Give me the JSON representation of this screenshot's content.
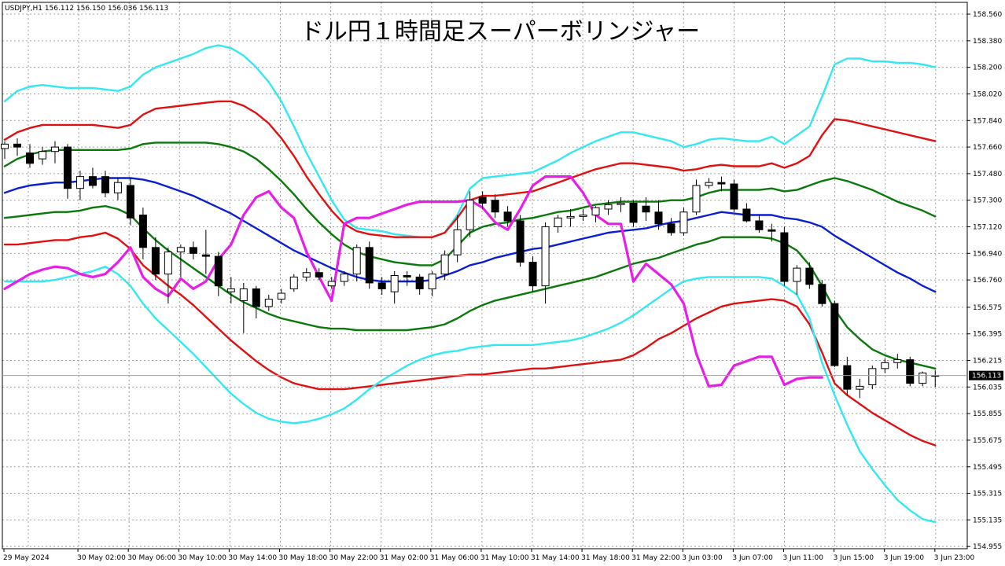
{
  "symbol_info": "USDJPY,H1  156.112 156.150 156.036 156.113",
  "chart_data": {
    "type": "line",
    "title": "ドル円１時間足スーパーボリンジャー",
    "current_price": 156.113,
    "current_price_label": "156.113",
    "ylim": [
      154.94,
      158.64
    ],
    "y_ticks": [
      "158.560",
      "158.380",
      "158.200",
      "158.020",
      "157.840",
      "157.660",
      "157.480",
      "157.300",
      "157.120",
      "156.940",
      "156.760",
      "156.575",
      "156.395",
      "156.215",
      "156.035",
      "155.855",
      "155.675",
      "155.495",
      "155.315",
      "155.135",
      "154.955"
    ],
    "x_labels": [
      "29 May 2024",
      "30 May 02:00",
      "30 May 06:00",
      "30 May 10:00",
      "30 May 14:00",
      "30 May 18:00",
      "30 May 22:00",
      "31 May 02:00",
      "31 May 06:00",
      "31 May 10:00",
      "31 May 14:00",
      "31 May 18:00",
      "31 May 22:00",
      "3 Jun 03:00",
      "3 Jun 07:00",
      "3 Jun 11:00",
      "3 Jun 15:00",
      "3 Jun 19:00",
      "3 Jun 23:00"
    ],
    "grid": true,
    "colors": {
      "outer_band": "#33e8f0",
      "mid_band": "#e01010",
      "inner_band": "#0a780a",
      "middle_line": "#0a1ed2",
      "lagging_span": "#e61ee6",
      "bull_candle": "#ffffff",
      "bear_candle": "#000000"
    },
    "candles": [
      [
        157.65,
        157.7,
        157.58,
        157.68
      ],
      [
        157.68,
        157.72,
        157.6,
        157.66
      ],
      [
        157.62,
        157.68,
        157.52,
        157.55
      ],
      [
        157.58,
        157.66,
        157.54,
        157.63
      ],
      [
        157.63,
        157.7,
        157.55,
        157.66
      ],
      [
        157.66,
        157.68,
        157.31,
        157.38
      ],
      [
        157.38,
        157.5,
        157.3,
        157.46
      ],
      [
        157.46,
        157.52,
        157.38,
        157.4
      ],
      [
        157.46,
        157.5,
        157.32,
        157.35
      ],
      [
        157.35,
        157.45,
        157.3,
        157.42
      ],
      [
        157.4,
        157.45,
        157.13,
        157.18
      ],
      [
        157.2,
        157.25,
        156.9,
        156.98
      ],
      [
        156.98,
        157.05,
        156.76,
        156.8
      ],
      [
        156.8,
        156.98,
        156.6,
        156.95
      ],
      [
        156.95,
        157.0,
        156.78,
        156.98
      ],
      [
        156.98,
        157.02,
        156.9,
        156.94
      ],
      [
        156.93,
        157.1,
        156.8,
        156.92
      ],
      [
        156.92,
        156.95,
        156.65,
        156.72
      ],
      [
        156.68,
        156.78,
        156.6,
        156.7
      ],
      [
        156.62,
        156.74,
        156.4,
        156.7
      ],
      [
        156.7,
        156.72,
        156.5,
        156.58
      ],
      [
        156.58,
        156.66,
        156.55,
        156.63
      ],
      [
        156.63,
        156.7,
        156.6,
        156.67
      ],
      [
        156.7,
        156.8,
        156.68,
        156.78
      ],
      [
        156.78,
        156.84,
        156.75,
        156.81
      ],
      [
        156.81,
        156.84,
        156.76,
        156.78
      ],
      [
        156.72,
        156.78,
        156.7,
        156.75
      ],
      [
        156.75,
        156.82,
        156.72,
        156.8
      ],
      [
        156.8,
        157.0,
        156.75,
        156.98
      ],
      [
        156.98,
        157.02,
        156.7,
        156.74
      ],
      [
        156.74,
        156.78,
        156.66,
        156.7
      ],
      [
        156.68,
        156.82,
        156.6,
        156.79
      ],
      [
        156.79,
        156.82,
        156.72,
        156.78
      ],
      [
        156.78,
        156.8,
        156.66,
        156.7
      ],
      [
        156.7,
        156.82,
        156.65,
        156.8
      ],
      [
        156.8,
        156.96,
        156.76,
        156.93
      ],
      [
        156.93,
        157.2,
        156.88,
        157.1
      ],
      [
        157.1,
        157.36,
        157.05,
        157.3
      ],
      [
        157.32,
        157.36,
        157.24,
        157.28
      ],
      [
        157.3,
        157.34,
        157.18,
        157.22
      ],
      [
        157.22,
        157.26,
        157.12,
        157.16
      ],
      [
        157.16,
        157.2,
        156.85,
        156.88
      ],
      [
        156.88,
        156.92,
        156.68,
        156.72
      ],
      [
        156.72,
        157.15,
        156.6,
        157.12
      ],
      [
        157.12,
        157.2,
        157.08,
        157.18
      ],
      [
        157.18,
        157.24,
        157.12,
        157.19
      ],
      [
        157.19,
        157.24,
        157.16,
        157.2
      ],
      [
        157.2,
        157.26,
        157.15,
        157.25
      ],
      [
        157.24,
        157.3,
        157.2,
        157.27
      ],
      [
        157.27,
        157.32,
        157.22,
        157.28
      ],
      [
        157.28,
        157.3,
        157.12,
        157.15
      ],
      [
        157.26,
        157.32,
        157.16,
        157.22
      ],
      [
        157.22,
        157.3,
        157.1,
        157.14
      ],
      [
        157.14,
        157.18,
        157.06,
        157.08
      ],
      [
        157.08,
        157.25,
        157.06,
        157.22
      ],
      [
        157.22,
        157.44,
        157.2,
        157.4
      ],
      [
        157.4,
        157.45,
        157.38,
        157.42
      ],
      [
        157.42,
        157.46,
        157.36,
        157.41
      ],
      [
        157.41,
        157.44,
        157.22,
        157.24
      ],
      [
        157.24,
        157.28,
        157.15,
        157.16
      ],
      [
        157.16,
        157.2,
        157.08,
        157.1
      ],
      [
        157.1,
        157.14,
        157.02,
        157.09
      ],
      [
        157.08,
        157.12,
        156.72,
        156.75
      ],
      [
        156.75,
        156.86,
        156.66,
        156.84
      ],
      [
        156.84,
        156.88,
        156.7,
        156.73
      ],
      [
        156.73,
        156.76,
        156.58,
        156.6
      ],
      [
        156.6,
        156.62,
        156.17,
        156.18
      ],
      [
        156.18,
        156.24,
        155.98,
        156.02
      ],
      [
        156.02,
        156.09,
        155.96,
        156.04
      ],
      [
        156.05,
        156.18,
        156.02,
        156.16
      ],
      [
        156.16,
        156.23,
        156.13,
        156.2
      ],
      [
        156.2,
        156.26,
        156.16,
        156.22
      ],
      [
        156.22,
        156.24,
        156.04,
        156.06
      ],
      [
        156.06,
        156.14,
        156.04,
        156.13
      ],
      [
        156.112,
        156.15,
        156.036,
        156.113
      ]
    ],
    "series": [
      {
        "key": "upper3",
        "values": [
          157.97,
          158.04,
          158.07,
          158.08,
          158.07,
          158.06,
          158.06,
          158.06,
          158.05,
          158.04,
          158.07,
          158.15,
          158.2,
          158.23,
          158.26,
          158.29,
          158.33,
          158.35,
          158.33,
          158.28,
          158.2,
          158.1,
          157.97,
          157.8,
          157.62,
          157.46,
          157.3,
          157.17,
          157.11,
          157.1,
          157.09,
          157.07,
          157.06,
          157.05,
          157.05,
          157.08,
          157.2,
          157.38,
          157.45,
          157.46,
          157.47,
          157.48,
          157.49,
          157.53,
          157.57,
          157.62,
          157.66,
          157.7,
          157.73,
          157.76,
          157.76,
          157.74,
          157.72,
          157.7,
          157.66,
          157.68,
          157.71,
          157.72,
          157.71,
          157.7,
          157.7,
          157.73,
          157.68,
          157.74,
          157.8,
          158.0,
          158.22,
          158.26,
          158.26,
          158.24,
          158.24,
          158.23,
          158.23,
          158.22,
          158.2
        ]
      },
      {
        "key": "upper2",
        "values": [
          157.71,
          157.76,
          157.79,
          157.81,
          157.81,
          157.81,
          157.81,
          157.81,
          157.8,
          157.79,
          157.81,
          157.88,
          157.92,
          157.93,
          157.94,
          157.95,
          157.96,
          157.97,
          157.97,
          157.94,
          157.89,
          157.82,
          157.72,
          157.6,
          157.46,
          157.34,
          157.23,
          157.14,
          157.09,
          157.07,
          157.06,
          157.05,
          157.05,
          157.05,
          157.05,
          157.08,
          157.18,
          157.3,
          157.33,
          157.33,
          157.34,
          157.35,
          157.36,
          157.39,
          157.42,
          157.45,
          157.48,
          157.51,
          157.53,
          157.55,
          157.55,
          157.54,
          157.53,
          157.52,
          157.5,
          157.51,
          157.53,
          157.54,
          157.53,
          157.53,
          157.53,
          157.55,
          157.52,
          157.55,
          157.6,
          157.74,
          157.85,
          157.84,
          157.82,
          157.8,
          157.78,
          157.76,
          157.74,
          157.72,
          157.7
        ]
      },
      {
        "key": "upper1",
        "values": [
          157.53,
          157.58,
          157.61,
          157.63,
          157.64,
          157.64,
          157.64,
          157.64,
          157.64,
          157.64,
          157.65,
          157.68,
          157.69,
          157.69,
          157.69,
          157.69,
          157.69,
          157.68,
          157.66,
          157.63,
          157.58,
          157.51,
          157.43,
          157.34,
          157.24,
          157.15,
          157.07,
          157.0,
          156.95,
          156.92,
          156.9,
          156.88,
          156.87,
          156.86,
          156.86,
          156.9,
          156.99,
          157.08,
          157.12,
          157.14,
          157.15,
          157.17,
          157.18,
          157.2,
          157.22,
          157.23,
          157.25,
          157.27,
          157.28,
          157.29,
          157.29,
          157.29,
          157.29,
          157.3,
          157.3,
          157.32,
          157.35,
          157.37,
          157.37,
          157.37,
          157.37,
          157.38,
          157.36,
          157.37,
          157.4,
          157.43,
          157.45,
          157.43,
          157.4,
          157.37,
          157.33,
          157.29,
          157.26,
          157.23,
          157.19
        ]
      },
      {
        "key": "middle",
        "values": [
          157.35,
          157.38,
          157.4,
          157.41,
          157.42,
          157.42,
          157.43,
          157.44,
          157.45,
          157.45,
          157.45,
          157.44,
          157.42,
          157.39,
          157.36,
          157.33,
          157.29,
          157.25,
          157.21,
          157.16,
          157.11,
          157.06,
          157.01,
          156.96,
          156.92,
          156.88,
          156.84,
          156.81,
          156.78,
          156.76,
          156.75,
          156.75,
          156.75,
          156.75,
          156.76,
          156.79,
          156.82,
          156.86,
          156.88,
          156.91,
          156.93,
          156.95,
          156.97,
          156.98,
          157.0,
          157.02,
          157.04,
          157.06,
          157.08,
          157.09,
          157.1,
          157.11,
          157.13,
          157.15,
          157.16,
          157.18,
          157.2,
          157.22,
          157.21,
          157.2,
          157.2,
          157.2,
          157.18,
          157.17,
          157.15,
          157.12,
          157.06,
          157.01,
          156.96,
          156.91,
          156.86,
          156.81,
          156.77,
          156.72,
          156.68
        ]
      },
      {
        "key": "lower1",
        "values": [
          157.18,
          157.19,
          157.2,
          157.21,
          157.22,
          157.22,
          157.23,
          157.25,
          157.26,
          157.24,
          157.2,
          157.11,
          157.03,
          156.96,
          156.9,
          156.84,
          156.78,
          156.72,
          156.66,
          156.61,
          156.57,
          156.53,
          156.5,
          156.48,
          156.46,
          156.44,
          156.43,
          156.43,
          156.42,
          156.42,
          156.42,
          156.42,
          156.42,
          156.43,
          156.44,
          156.46,
          156.5,
          156.55,
          156.59,
          156.62,
          156.64,
          156.66,
          156.68,
          156.7,
          156.72,
          156.74,
          156.76,
          156.78,
          156.81,
          156.84,
          156.87,
          156.89,
          156.91,
          156.94,
          156.97,
          157.0,
          157.02,
          157.05,
          157.05,
          157.05,
          157.05,
          157.04,
          157.01,
          156.96,
          156.86,
          156.72,
          156.56,
          156.44,
          156.36,
          156.29,
          156.25,
          156.22,
          156.2,
          156.18,
          156.16
        ]
      },
      {
        "key": "lower2",
        "values": [
          157.0,
          157.0,
          157.01,
          157.02,
          157.03,
          157.03,
          157.05,
          157.06,
          157.08,
          157.04,
          156.97,
          156.86,
          156.79,
          156.72,
          156.66,
          156.59,
          156.51,
          156.43,
          156.35,
          156.28,
          156.21,
          156.15,
          156.1,
          156.06,
          156.04,
          156.02,
          156.02,
          156.02,
          156.03,
          156.04,
          156.05,
          156.06,
          156.07,
          156.08,
          156.09,
          156.1,
          156.11,
          156.12,
          156.12,
          156.13,
          156.14,
          156.15,
          156.16,
          156.16,
          156.17,
          156.18,
          156.19,
          156.2,
          156.21,
          156.22,
          156.25,
          156.3,
          156.36,
          156.4,
          156.45,
          156.5,
          156.54,
          156.58,
          156.6,
          156.61,
          156.62,
          156.63,
          156.62,
          156.58,
          156.46,
          156.27,
          156.06,
          155.98,
          155.92,
          155.86,
          155.81,
          155.76,
          155.71,
          155.67,
          155.64
        ]
      },
      {
        "key": "lower3",
        "values": [
          156.75,
          156.75,
          156.75,
          156.75,
          156.76,
          156.78,
          156.8,
          156.82,
          156.85,
          156.8,
          156.72,
          156.6,
          156.5,
          156.42,
          156.34,
          156.26,
          156.17,
          156.08,
          155.99,
          155.92,
          155.86,
          155.82,
          155.8,
          155.79,
          155.8,
          155.82,
          155.85,
          155.89,
          155.95,
          156.02,
          156.08,
          156.13,
          156.18,
          156.22,
          156.25,
          156.27,
          156.28,
          156.3,
          156.31,
          156.32,
          156.32,
          156.32,
          156.32,
          156.33,
          156.34,
          156.35,
          156.37,
          156.4,
          156.43,
          156.47,
          156.52,
          156.58,
          156.64,
          156.7,
          156.75,
          156.77,
          156.78,
          156.78,
          156.78,
          156.78,
          156.78,
          156.77,
          156.72,
          156.66,
          156.5,
          156.2,
          155.98,
          155.78,
          155.6,
          155.48,
          155.37,
          155.27,
          155.2,
          155.14,
          155.12
        ]
      },
      {
        "key": "lagging",
        "values": [
          156.7,
          156.75,
          156.8,
          156.83,
          156.85,
          156.84,
          156.8,
          156.78,
          156.8,
          156.88,
          156.98,
          156.78,
          156.7,
          156.65,
          156.77,
          156.7,
          156.75,
          156.9,
          157.0,
          157.2,
          157.32,
          157.36,
          157.25,
          157.18,
          156.95,
          156.78,
          156.62,
          157.14,
          157.18,
          157.18,
          157.21,
          157.24,
          157.27,
          157.29,
          157.29,
          157.29,
          157.29,
          157.3,
          157.25,
          157.15,
          157.1,
          157.24,
          157.4,
          157.46,
          157.46,
          157.46,
          157.35,
          157.2,
          157.14,
          157.14,
          156.75,
          156.87,
          156.8,
          156.73,
          156.6,
          156.26,
          156.04,
          156.05,
          156.18,
          156.21,
          156.24,
          156.24,
          156.05,
          156.09,
          156.1,
          156.1
        ]
      }
    ]
  }
}
